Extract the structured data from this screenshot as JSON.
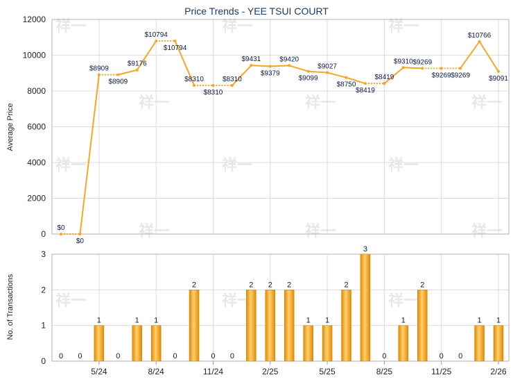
{
  "title": "Price Trends - YEE TSUI COURT",
  "watermark": "祥一",
  "chart_data": [
    {
      "type": "line",
      "title": "Price Trends - YEE TSUI COURT",
      "ylabel": "Average Price",
      "ylim": [
        0,
        12000
      ],
      "yticks": [
        "0",
        "2000",
        "4000",
        "6000",
        "8000",
        "10000",
        "12000"
      ],
      "yticks_values": [
        0,
        2000,
        4000,
        6000,
        8000,
        10000,
        12000
      ],
      "series": [
        {
          "values": [
            0,
            0,
            8909,
            8909,
            9176,
            10794,
            10794,
            8310,
            8310,
            8310,
            9431,
            9379,
            9420,
            9099,
            9027,
            8750,
            8419,
            8419,
            9310,
            9269,
            9269,
            9269,
            10766,
            9091
          ],
          "labels": [
            "$0",
            "$0",
            "$8909",
            "$8909",
            "$9176",
            "$10794",
            "$10794",
            "$8310",
            "$8310",
            "$8310",
            "$9431",
            "$9379",
            "$9420",
            "$9099",
            "$9027",
            "$8750",
            "$8419",
            "$8419",
            "$9310",
            "$9269",
            "$9269",
            "$9269",
            "$10766",
            "$9091"
          ],
          "color": "#f5a623"
        }
      ],
      "grid": true
    },
    {
      "type": "bar",
      "ylabel": "No. of Transactions",
      "ylim": [
        0,
        3
      ],
      "yticks": [
        "0",
        "1",
        "2",
        "3"
      ],
      "yticks_values": [
        0,
        1,
        2,
        3
      ],
      "xticks": [
        "5/24",
        "8/24",
        "11/24",
        "2/25",
        "5/25",
        "8/25",
        "11/25",
        "2/26"
      ],
      "xtick_index": [
        2,
        5,
        8,
        11,
        14,
        17,
        20,
        23
      ],
      "values": [
        0,
        0,
        1,
        0,
        1,
        1,
        0,
        2,
        0,
        0,
        2,
        2,
        2,
        1,
        1,
        2,
        3,
        0,
        1,
        2,
        0,
        0,
        1,
        1
      ],
      "labels": [
        "0",
        "0",
        "1",
        "0",
        "1",
        "1",
        "0",
        "2",
        "0",
        "0",
        "2",
        "2",
        "2",
        "1",
        "1",
        "2",
        "3",
        "0",
        "1",
        "2",
        "0",
        "0",
        "1",
        "1"
      ],
      "color": "#f0a000",
      "grid": true
    }
  ]
}
